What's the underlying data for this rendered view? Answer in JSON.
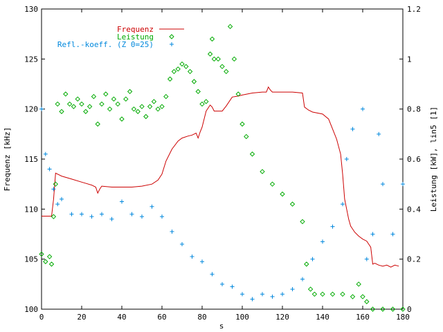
{
  "chart_data": {
    "type": "line",
    "xlabel": "s",
    "ylabel_left": "Frequenz [kHz]",
    "ylabel_right": "Leistung [kW], lin5 [1]",
    "xlim": [
      0,
      180
    ],
    "ylim_left": [
      100,
      130
    ],
    "ylim_right": [
      0,
      1.2
    ],
    "x_ticks": [
      "0",
      "20",
      "40",
      "60",
      "80",
      "100",
      "120",
      "140",
      "160",
      "180"
    ],
    "y_left_ticks": [
      "100",
      "105",
      "110",
      "115",
      "120",
      "125",
      "130"
    ],
    "y_right_ticks": [
      "0",
      "0.2",
      "0.4",
      "0.6",
      "0.8",
      "1",
      "1.2"
    ],
    "grid": false,
    "legend_position": "top-left",
    "series": [
      {
        "name": "Frequenz",
        "axis": "left",
        "style": "line",
        "color": "#cc0000",
        "x": [
          0,
          5,
          6,
          7,
          10,
          15,
          20,
          25,
          27,
          28,
          29,
          30,
          35,
          40,
          45,
          50,
          55,
          58,
          60,
          62,
          65,
          68,
          70,
          73,
          75,
          77,
          78,
          79,
          80,
          82,
          84,
          85,
          86,
          88,
          90,
          92,
          95,
          98,
          100,
          105,
          110,
          112,
          113,
          114,
          115,
          118,
          120,
          125,
          130,
          131,
          133,
          135,
          140,
          143,
          145,
          147,
          149,
          150,
          151,
          152,
          153,
          154,
          156,
          158,
          160,
          162,
          163,
          164,
          165,
          166,
          168,
          170,
          172,
          174,
          176,
          178
        ],
        "y": [
          109.3,
          109.3,
          111.0,
          113.6,
          113.3,
          113.0,
          112.7,
          112.4,
          112.2,
          111.6,
          112.0,
          112.3,
          112.2,
          112.2,
          112.2,
          112.3,
          112.5,
          112.9,
          113.5,
          114.8,
          116.0,
          116.8,
          117.1,
          117.3,
          117.4,
          117.6,
          117.1,
          117.7,
          118.2,
          119.8,
          120.4,
          120.2,
          119.8,
          119.8,
          119.8,
          120.3,
          121.2,
          121.3,
          121.4,
          121.6,
          121.7,
          121.7,
          122.2,
          121.9,
          121.7,
          121.7,
          121.7,
          121.7,
          121.6,
          120.2,
          119.9,
          119.7,
          119.5,
          119.0,
          118.0,
          117.0,
          115.5,
          113.5,
          111.0,
          110.0,
          109.0,
          108.3,
          107.7,
          107.3,
          107.0,
          106.8,
          106.5,
          106.2,
          104.5,
          104.6,
          104.4,
          104.3,
          104.4,
          104.2,
          104.4,
          104.3
        ]
      },
      {
        "name": "Leistung",
        "axis": "right",
        "style": "diamonds",
        "color": "#00aa00",
        "x": [
          0,
          2,
          4,
          5,
          6,
          7,
          8,
          10,
          12,
          14,
          16,
          18,
          20,
          22,
          24,
          26,
          28,
          30,
          32,
          34,
          36,
          38,
          40,
          42,
          44,
          46,
          48,
          50,
          52,
          54,
          56,
          58,
          60,
          62,
          64,
          66,
          68,
          70,
          72,
          74,
          76,
          78,
          80,
          82,
          84,
          85,
          86,
          88,
          90,
          92,
          94,
          96,
          98,
          100,
          102,
          105,
          110,
          115,
          120,
          125,
          130,
          132,
          134,
          136,
          140,
          145,
          150,
          155,
          158,
          160,
          162,
          165,
          170,
          175,
          180
        ],
        "y": [
          0.22,
          0.19,
          0.21,
          0.18,
          0.37,
          0.5,
          0.82,
          0.79,
          0.86,
          0.82,
          0.81,
          0.84,
          0.82,
          0.79,
          0.81,
          0.85,
          0.74,
          0.82,
          0.86,
          0.8,
          0.84,
          0.82,
          0.76,
          0.84,
          0.87,
          0.8,
          0.79,
          0.81,
          0.77,
          0.81,
          0.83,
          0.8,
          0.81,
          0.85,
          0.92,
          0.95,
          0.96,
          0.98,
          0.97,
          0.95,
          0.91,
          0.87,
          0.82,
          0.83,
          1.02,
          1.08,
          1.0,
          1.0,
          0.97,
          0.95,
          1.13,
          1.0,
          0.86,
          0.74,
          0.69,
          0.62,
          0.55,
          0.5,
          0.46,
          0.42,
          0.35,
          0.18,
          0.08,
          0.06,
          0.06,
          0.06,
          0.06,
          0.05,
          0.1,
          0.05,
          0.03,
          0.0,
          0.0,
          0.0,
          0.0
        ]
      },
      {
        "name": "Refl.-koeff. (Z 0=25)",
        "axis": "right",
        "style": "plus",
        "color": "#0088dd",
        "x": [
          0,
          2,
          4,
          6,
          8,
          10,
          15,
          20,
          25,
          30,
          35,
          40,
          45,
          50,
          55,
          60,
          65,
          70,
          75,
          80,
          85,
          90,
          95,
          100,
          105,
          110,
          115,
          120,
          125,
          130,
          135,
          140,
          145,
          150,
          152,
          155,
          160,
          162,
          165,
          168,
          170,
          175,
          180
        ],
        "y": [
          0.8,
          0.62,
          0.56,
          0.48,
          0.42,
          0.44,
          0.38,
          0.38,
          0.37,
          0.38,
          0.36,
          0.43,
          0.38,
          0.37,
          0.41,
          0.37,
          0.31,
          0.26,
          0.21,
          0.19,
          0.14,
          0.1,
          0.09,
          0.06,
          0.04,
          0.06,
          0.05,
          0.06,
          0.08,
          0.12,
          0.2,
          0.27,
          0.33,
          0.42,
          0.6,
          0.72,
          0.8,
          0.2,
          0.3,
          0.7,
          0.5,
          0.3,
          0.5
        ]
      }
    ]
  }
}
